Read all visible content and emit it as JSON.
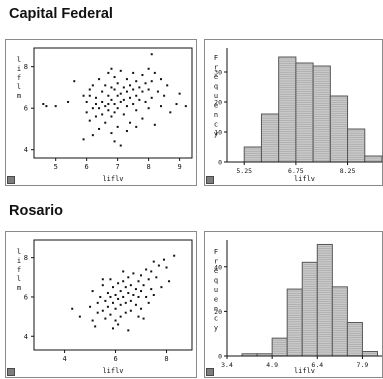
{
  "page": {
    "sections": [
      {
        "title": "Capital Federal"
      },
      {
        "title": "Rosario"
      }
    ]
  },
  "colors": {
    "point": "#111111",
    "bar_fill": "#c9c9c9",
    "bar_stroke": "#555555",
    "bar_hatch": "#9a9a9a",
    "axis": "#111111",
    "panel_border": "#8a8a8a"
  },
  "icons": {
    "panel_corner": "resize-handle-icon"
  },
  "chart_data": [
    {
      "id": "cf-scatter",
      "section": "Capital Federal",
      "type": "scatter",
      "xlabel": "liflv",
      "ylabel": "liflm",
      "xlim": [
        4.3,
        9.4
      ],
      "ylim": [
        3.6,
        8.9
      ],
      "xticks": [
        5,
        6,
        7,
        8,
        9
      ],
      "yticks": [
        4,
        6,
        8
      ],
      "points": [
        [
          4.6,
          6.2
        ],
        [
          4.7,
          6.1
        ],
        [
          5.0,
          6.1
        ],
        [
          5.4,
          6.3
        ],
        [
          5.6,
          7.3
        ],
        [
          5.9,
          4.5
        ],
        [
          5.9,
          6.6
        ],
        [
          6.0,
          5.8
        ],
        [
          6.0,
          6.3
        ],
        [
          6.1,
          6.9
        ],
        [
          6.1,
          5.4
        ],
        [
          6.2,
          6.0
        ],
        [
          6.2,
          7.1
        ],
        [
          6.2,
          4.7
        ],
        [
          6.3,
          6.5
        ],
        [
          6.3,
          5.6
        ],
        [
          6.3,
          6.2
        ],
        [
          6.4,
          7.4
        ],
        [
          6.4,
          6.0
        ],
        [
          6.4,
          5.0
        ],
        [
          6.5,
          6.8
        ],
        [
          6.5,
          6.3
        ],
        [
          6.5,
          5.7
        ],
        [
          6.6,
          7.1
        ],
        [
          6.6,
          6.1
        ],
        [
          6.6,
          5.3
        ],
        [
          6.7,
          6.6
        ],
        [
          6.7,
          7.7
        ],
        [
          6.7,
          6.2
        ],
        [
          6.7,
          5.9
        ],
        [
          6.8,
          7.0
        ],
        [
          6.8,
          6.4
        ],
        [
          6.8,
          4.8
        ],
        [
          6.8,
          5.6
        ],
        [
          6.9,
          6.9
        ],
        [
          6.9,
          6.2
        ],
        [
          6.9,
          7.5
        ],
        [
          6.9,
          5.8
        ],
        [
          7.0,
          6.6
        ],
        [
          7.0,
          7.2
        ],
        [
          7.0,
          6.0
        ],
        [
          7.0,
          5.1
        ],
        [
          7.1,
          6.7
        ],
        [
          7.1,
          7.8
        ],
        [
          7.1,
          6.3
        ],
        [
          7.1,
          4.2
        ],
        [
          7.2,
          7.0
        ],
        [
          7.2,
          6.4
        ],
        [
          7.2,
          5.7
        ],
        [
          7.3,
          7.4
        ],
        [
          7.3,
          6.8
        ],
        [
          7.3,
          6.1
        ],
        [
          7.4,
          7.1
        ],
        [
          7.4,
          6.5
        ],
        [
          7.4,
          5.3
        ],
        [
          7.5,
          7.7
        ],
        [
          7.5,
          6.9
        ],
        [
          7.5,
          6.2
        ],
        [
          7.6,
          7.3
        ],
        [
          7.6,
          6.6
        ],
        [
          7.6,
          5.9
        ],
        [
          7.7,
          7.0
        ],
        [
          7.7,
          6.4
        ],
        [
          7.8,
          7.6
        ],
        [
          7.8,
          6.8
        ],
        [
          7.8,
          5.5
        ],
        [
          7.9,
          7.2
        ],
        [
          7.9,
          6.3
        ],
        [
          8.0,
          7.9
        ],
        [
          8.0,
          6.9
        ],
        [
          8.0,
          6.0
        ],
        [
          8.1,
          8.6
        ],
        [
          8.1,
          7.3
        ],
        [
          8.1,
          6.5
        ],
        [
          8.2,
          7.7
        ],
        [
          8.2,
          5.2
        ],
        [
          8.3,
          6.8
        ],
        [
          8.4,
          7.4
        ],
        [
          8.4,
          6.1
        ],
        [
          8.5,
          6.6
        ],
        [
          8.6,
          7.1
        ],
        [
          8.7,
          5.8
        ],
        [
          8.9,
          6.2
        ],
        [
          9.0,
          6.7
        ],
        [
          9.2,
          6.1
        ],
        [
          6.9,
          4.4
        ],
        [
          7.3,
          4.9
        ],
        [
          7.6,
          5.1
        ],
        [
          6.1,
          6.6
        ],
        [
          6.8,
          7.9
        ]
      ]
    },
    {
      "id": "cf-histogram",
      "section": "Capital Federal",
      "type": "bar",
      "xlabel": "liflv",
      "ylabel": "Frequency",
      "xlim": [
        4.75,
        9.25
      ],
      "ylim": [
        0,
        38
      ],
      "xticks": [
        "5.25",
        "6.75",
        "8.25"
      ],
      "yticks": [
        0,
        10,
        20,
        30
      ],
      "bins": [
        [
          4.75,
          5.25
        ],
        [
          5.25,
          5.75
        ],
        [
          5.75,
          6.25
        ],
        [
          6.25,
          6.75
        ],
        [
          6.75,
          7.25
        ],
        [
          7.25,
          7.75
        ],
        [
          7.75,
          8.25
        ],
        [
          8.25,
          8.75
        ],
        [
          8.75,
          9.25
        ]
      ],
      "values": [
        0,
        5,
        16,
        35,
        33,
        32,
        22,
        11,
        2
      ]
    },
    {
      "id": "ros-scatter",
      "section": "Rosario",
      "type": "scatter",
      "xlabel": "liflv",
      "ylabel": "liflm",
      "xlim": [
        2.8,
        9.0
      ],
      "ylim": [
        3.3,
        8.9
      ],
      "xticks": [
        4,
        6,
        8
      ],
      "yticks": [
        4,
        6,
        8
      ],
      "points": [
        [
          4.3,
          5.4
        ],
        [
          4.6,
          5.0
        ],
        [
          5.0,
          5.5
        ],
        [
          5.1,
          6.3
        ],
        [
          5.1,
          4.8
        ],
        [
          5.3,
          5.7
        ],
        [
          5.3,
          5.2
        ],
        [
          5.4,
          6.0
        ],
        [
          5.5,
          6.6
        ],
        [
          5.5,
          5.3
        ],
        [
          5.6,
          5.8
        ],
        [
          5.6,
          4.9
        ],
        [
          5.7,
          6.2
        ],
        [
          5.7,
          5.5
        ],
        [
          5.8,
          6.0
        ],
        [
          5.8,
          5.1
        ],
        [
          5.9,
          6.5
        ],
        [
          5.9,
          5.7
        ],
        [
          6.0,
          6.1
        ],
        [
          6.0,
          5.4
        ],
        [
          6.0,
          4.8
        ],
        [
          6.1,
          6.7
        ],
        [
          6.1,
          5.9
        ],
        [
          6.2,
          6.3
        ],
        [
          6.2,
          5.6
        ],
        [
          6.2,
          5.0
        ],
        [
          6.3,
          6.8
        ],
        [
          6.3,
          6.0
        ],
        [
          6.4,
          6.5
        ],
        [
          6.4,
          5.7
        ],
        [
          6.4,
          5.2
        ],
        [
          6.5,
          6.2
        ],
        [
          6.5,
          7.0
        ],
        [
          6.6,
          6.6
        ],
        [
          6.6,
          5.8
        ],
        [
          6.6,
          5.3
        ],
        [
          6.7,
          6.1
        ],
        [
          6.7,
          7.2
        ],
        [
          6.8,
          6.4
        ],
        [
          6.8,
          5.6
        ],
        [
          6.9,
          6.8
        ],
        [
          6.9,
          6.0
        ],
        [
          7.0,
          7.1
        ],
        [
          7.0,
          6.3
        ],
        [
          7.0,
          5.4
        ],
        [
          7.1,
          6.6
        ],
        [
          7.2,
          7.4
        ],
        [
          7.2,
          6.0
        ],
        [
          7.3,
          6.9
        ],
        [
          7.3,
          5.7
        ],
        [
          7.4,
          7.3
        ],
        [
          7.4,
          6.4
        ],
        [
          7.5,
          7.8
        ],
        [
          7.6,
          7.0
        ],
        [
          7.7,
          7.6
        ],
        [
          7.8,
          6.5
        ],
        [
          7.9,
          7.9
        ],
        [
          8.0,
          7.5
        ],
        [
          8.1,
          6.8
        ],
        [
          8.3,
          8.1
        ],
        [
          5.2,
          4.5
        ],
        [
          6.1,
          4.6
        ],
        [
          6.5,
          4.3
        ],
        [
          7.1,
          4.9
        ],
        [
          5.8,
          6.9
        ],
        [
          6.3,
          7.3
        ],
        [
          5.5,
          6.9
        ],
        [
          6.9,
          5.0
        ],
        [
          5.9,
          4.4
        ],
        [
          7.5,
          6.1
        ]
      ]
    },
    {
      "id": "ros-histogram",
      "section": "Rosario",
      "type": "bar",
      "xlabel": "liflv",
      "ylabel": "Frequency",
      "xlim": [
        3.4,
        8.55
      ],
      "ylim": [
        0,
        52
      ],
      "xticks": [
        "3.4",
        "4.9",
        "6.4",
        "7.9"
      ],
      "yticks": [
        0,
        20,
        40
      ],
      "bins": [
        [
          3.4,
          3.9
        ],
        [
          3.9,
          4.4
        ],
        [
          4.4,
          4.9
        ],
        [
          4.9,
          5.4
        ],
        [
          5.4,
          5.9
        ],
        [
          5.9,
          6.4
        ],
        [
          6.4,
          6.9
        ],
        [
          6.9,
          7.4
        ],
        [
          7.4,
          7.9
        ],
        [
          7.9,
          8.4
        ]
      ],
      "values": [
        0,
        1,
        1,
        8,
        30,
        42,
        50,
        31,
        15,
        2
      ]
    }
  ]
}
